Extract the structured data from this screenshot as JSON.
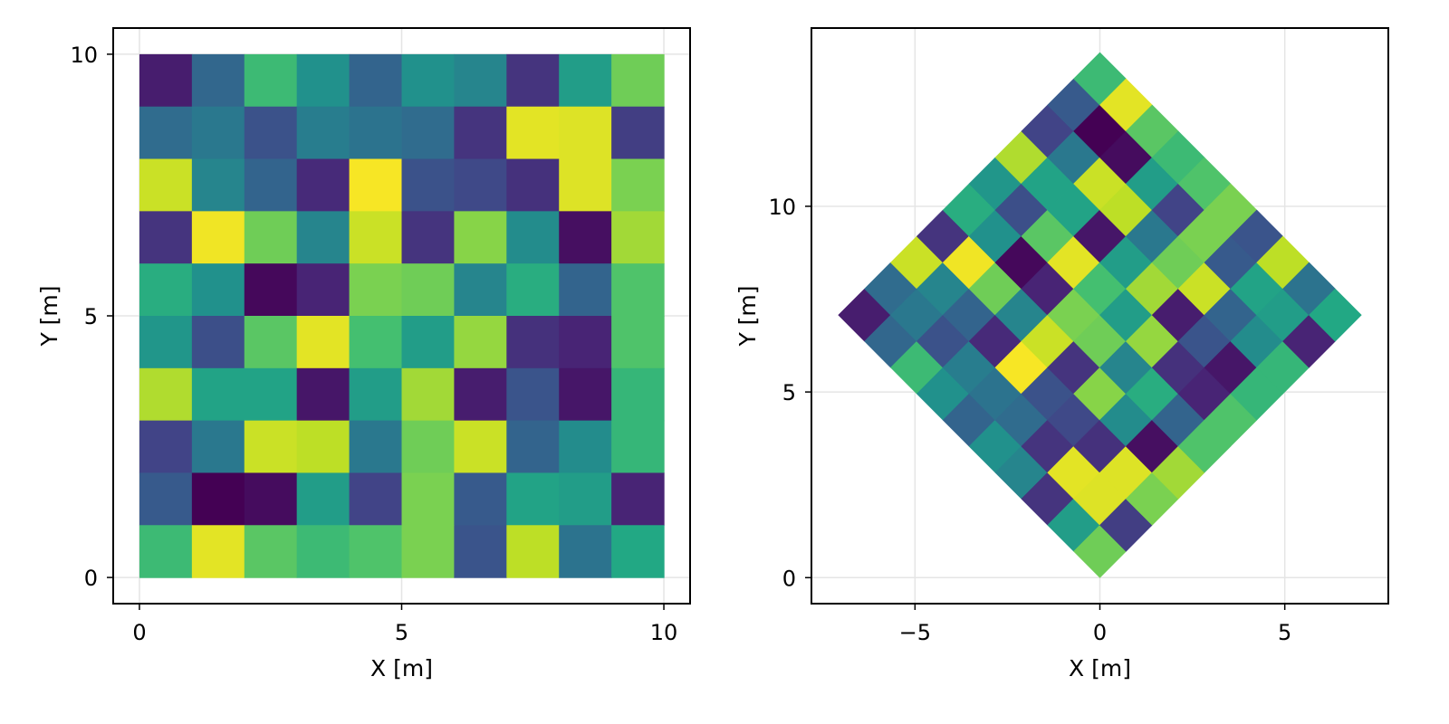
{
  "chart_data": [
    {
      "type": "heatmap",
      "title": "",
      "xlabel": "X [m]",
      "ylabel": "Y [m]",
      "xlim": [
        -0.5,
        10.5
      ],
      "ylim": [
        -0.5,
        10.5
      ],
      "xticks": [
        0,
        5,
        10
      ],
      "yticks": [
        0,
        5,
        10
      ],
      "xtick_labels": [
        "0",
        "5",
        "10"
      ],
      "ytick_labels": [
        "0",
        "5",
        "10"
      ],
      "grid": true,
      "colormap": "viridis",
      "cell_size": 1,
      "x_edges": [
        0,
        10
      ],
      "y_edges": [
        0,
        10
      ],
      "rows_top_to_bottom": [
        [
          0.08,
          0.33,
          0.68,
          0.5,
          0.32,
          0.5,
          0.45,
          0.15,
          0.55,
          0.78
        ],
        [
          0.35,
          0.4,
          0.25,
          0.42,
          0.38,
          0.35,
          0.15,
          0.96,
          0.95,
          0.18
        ],
        [
          0.92,
          0.45,
          0.32,
          0.12,
          0.99,
          0.25,
          0.22,
          0.14,
          0.95,
          0.8
        ],
        [
          0.15,
          0.98,
          0.78,
          0.45,
          0.92,
          0.15,
          0.82,
          0.48,
          0.04,
          0.86
        ],
        [
          0.62,
          0.5,
          0.02,
          0.1,
          0.8,
          0.78,
          0.45,
          0.62,
          0.32,
          0.72
        ],
        [
          0.52,
          0.24,
          0.74,
          0.96,
          0.7,
          0.55,
          0.84,
          0.14,
          0.1,
          0.72
        ],
        [
          0.88,
          0.58,
          0.58,
          0.06,
          0.55,
          0.86,
          0.08,
          0.26,
          0.06,
          0.66
        ],
        [
          0.2,
          0.4,
          0.92,
          0.9,
          0.4,
          0.78,
          0.92,
          0.32,
          0.48,
          0.66
        ],
        [
          0.28,
          0.0,
          0.03,
          0.55,
          0.2,
          0.8,
          0.28,
          0.58,
          0.55,
          0.1
        ],
        [
          0.68,
          0.96,
          0.74,
          0.68,
          0.72,
          0.8,
          0.26,
          0.9,
          0.38,
          0.6
        ]
      ]
    },
    {
      "type": "heatmap",
      "title": "",
      "xlabel": "X [m]",
      "ylabel": "Y [m]",
      "xlim": [
        -7.8,
        7.8
      ],
      "ylim": [
        -0.7,
        14.8
      ],
      "xticks": [
        -5,
        0,
        5
      ],
      "yticks": [
        0,
        5,
        10
      ],
      "xtick_labels": [
        "−5",
        "0",
        "5"
      ],
      "ytick_labels": [
        "0",
        "5",
        "10"
      ],
      "grid": true,
      "colormap": "viridis",
      "rotation_deg": 45,
      "cell_size": 1,
      "x_edges": [
        0,
        10
      ],
      "y_edges": [
        0,
        10
      ],
      "rows_top_to_bottom": [
        [
          0.08,
          0.35,
          0.92,
          0.15,
          0.62,
          0.52,
          0.88,
          0.2,
          0.28,
          0.68
        ],
        [
          0.33,
          0.4,
          0.45,
          0.98,
          0.5,
          0.24,
          0.58,
          0.4,
          0.0,
          0.96
        ],
        [
          0.68,
          0.25,
          0.32,
          0.78,
          0.02,
          0.74,
          0.58,
          0.92,
          0.03,
          0.74
        ],
        [
          0.5,
          0.42,
          0.12,
          0.45,
          0.1,
          0.96,
          0.06,
          0.9,
          0.55,
          0.68
        ],
        [
          0.32,
          0.38,
          0.99,
          0.92,
          0.8,
          0.7,
          0.55,
          0.4,
          0.2,
          0.72
        ],
        [
          0.5,
          0.35,
          0.25,
          0.15,
          0.78,
          0.55,
          0.86,
          0.78,
          0.8,
          0.8
        ],
        [
          0.45,
          0.15,
          0.22,
          0.82,
          0.45,
          0.84,
          0.08,
          0.92,
          0.28,
          0.26
        ],
        [
          0.15,
          0.96,
          0.14,
          0.48,
          0.62,
          0.14,
          0.26,
          0.32,
          0.58,
          0.9
        ],
        [
          0.55,
          0.95,
          0.95,
          0.04,
          0.32,
          0.1,
          0.06,
          0.48,
          0.55,
          0.38
        ],
        [
          0.78,
          0.18,
          0.8,
          0.86,
          0.72,
          0.72,
          0.66,
          0.66,
          0.1,
          0.6
        ]
      ]
    }
  ]
}
